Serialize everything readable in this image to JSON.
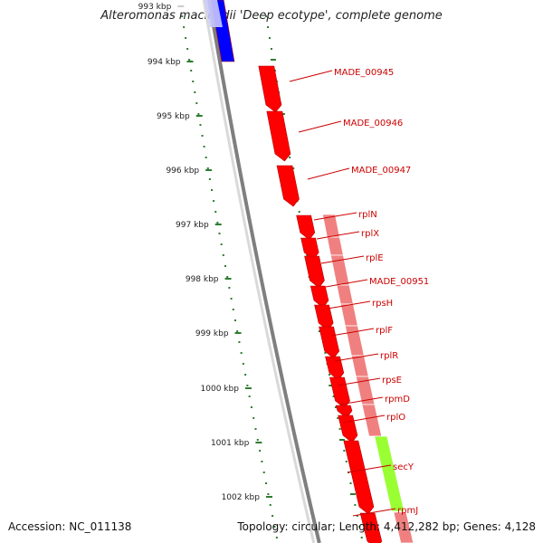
{
  "title": "Alteromonas macleodii 'Deep ecotype', complete genome",
  "accession": "Accession: NC_011138",
  "summary": "Topology: circular; Length: 4,412,282 bp; Genes: 4,128",
  "colors": {
    "backbone": "#7f7f7f",
    "cds": "#ff0000",
    "operon": "#f08080",
    "blue_feature": "#0000ff",
    "green_feature": "#99ff33",
    "ruler": "#2e7d32",
    "label": "#cc0000"
  },
  "ruler_ticks": [
    {
      "label": "993 kbp",
      "faded": true
    },
    {
      "label": "994 kbp"
    },
    {
      "label": "995 kbp"
    },
    {
      "label": "996 kbp"
    },
    {
      "label": "997 kbp"
    },
    {
      "label": "998 kbp"
    },
    {
      "label": "999 kbp"
    },
    {
      "label": "1000 kbp"
    },
    {
      "label": "1001 kbp"
    },
    {
      "label": "1002 kbp"
    }
  ],
  "gene_labels": [
    "MADE_00945",
    "MADE_00946",
    "MADE_00947",
    "rplN",
    "rplX",
    "rplE",
    "MADE_00951",
    "rpsH",
    "rplF",
    "rplR",
    "rpsE",
    "rpmD",
    "rplO",
    "secY",
    "rpmJ"
  ]
}
